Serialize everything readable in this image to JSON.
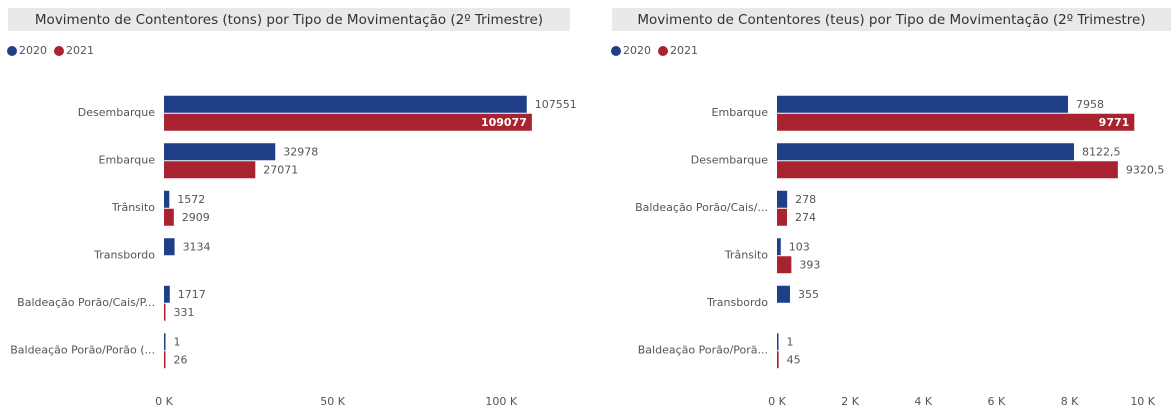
{
  "chart_data": [
    {
      "type": "bar",
      "orientation": "horizontal",
      "title": "Movimento de Contentores (tons) por Tipo de Movimentação (2º Trimestre)",
      "categories": [
        "Desembarque",
        "Embarque",
        "Trânsito",
        "Transbordo",
        "Baldeação Porão/Cais/P...",
        "Baldeação Porão/Porão (..."
      ],
      "series": [
        {
          "name": "2020",
          "color": "#1f3f87",
          "values": [
            107551,
            32978,
            1572,
            3134,
            1717,
            1
          ]
        },
        {
          "name": "2021",
          "color": "#a8232f",
          "values": [
            109077,
            27071,
            2909,
            null,
            331,
            26
          ]
        }
      ],
      "xlim": [
        0,
        110000
      ],
      "xticks": [
        {
          "value": 0,
          "label": "0 K"
        },
        {
          "value": 50000,
          "label": "50 K"
        },
        {
          "value": 100000,
          "label": "100 K"
        }
      ],
      "legend": "top-left"
    },
    {
      "type": "bar",
      "orientation": "horizontal",
      "title": "Movimento de Contentores (teus) por Tipo de Movimentação (2º Trimestre)",
      "categories": [
        "Embarque",
        "Desembarque",
        "Baldeação Porão/Cais/...",
        "Trânsito",
        "Transbordo",
        "Baldeação Porão/Porã..."
      ],
      "series": [
        {
          "name": "2020",
          "color": "#1f3f87",
          "values": [
            7958,
            8122.5,
            278,
            103,
            355,
            1
          ],
          "value_labels": [
            "7958",
            "8122,5",
            "278",
            "103",
            "355",
            "1"
          ]
        },
        {
          "name": "2021",
          "color": "#a8232f",
          "values": [
            9771,
            9320.5,
            274,
            393,
            null,
            45
          ],
          "value_labels": [
            "9771",
            "9320,5",
            "274",
            "393",
            null,
            "45"
          ]
        }
      ],
      "xlim": [
        0,
        10200
      ],
      "xticks": [
        {
          "value": 0,
          "label": "0 K"
        },
        {
          "value": 2000,
          "label": "2 K"
        },
        {
          "value": 4000,
          "label": "4 K"
        },
        {
          "value": 6000,
          "label": "6 K"
        },
        {
          "value": 8000,
          "label": "8 K"
        },
        {
          "value": 10000,
          "label": "10 K"
        }
      ],
      "legend": "top-left"
    }
  ]
}
